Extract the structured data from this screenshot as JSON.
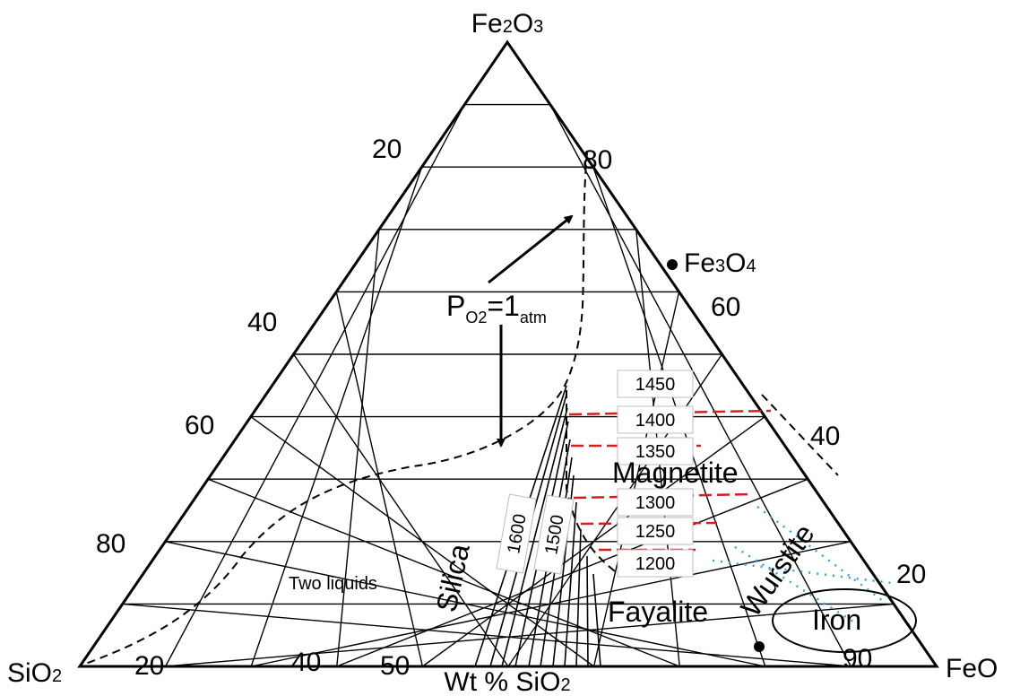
{
  "corners": {
    "top": {
      "main": "Fe",
      "sub1": "2",
      "mid": "O",
      "sub2": "3"
    },
    "left": {
      "main": "SiO",
      "sub1": "2"
    },
    "right": {
      "main": "FeO"
    }
  },
  "fe3o4": {
    "main": "Fe",
    "sub1": "3",
    "mid": "O",
    "sub2": "4"
  },
  "left_ticks": [
    "20",
    "40",
    "60",
    "80"
  ],
  "right_ticks": [
    "80",
    "60",
    "40",
    "20"
  ],
  "bottom_ticks": [
    "20",
    "40",
    "50",
    "90"
  ],
  "axis_title": {
    "main": "Wt % SiO",
    "sub": "2"
  },
  "pressure": {
    "p": "P",
    "sub": "O2",
    "eq": "=1",
    "unit": "atm"
  },
  "phases": {
    "magnetite": "Magnetite",
    "silica": "Silica",
    "fayalite": "Fayalite",
    "wurstite": "Wurstite",
    "iron": "Iron",
    "two_liquids": "Two liquids"
  },
  "isotherms": [
    "1450",
    "1400",
    "1350",
    "1300",
    "1250",
    "1200",
    "1600",
    "1500"
  ],
  "colors": {
    "line": "#000000",
    "isotherm_dash": "#d21f1f",
    "boundary_dots": "#3aa0e0",
    "label_box_border": "#bdbdbd"
  }
}
